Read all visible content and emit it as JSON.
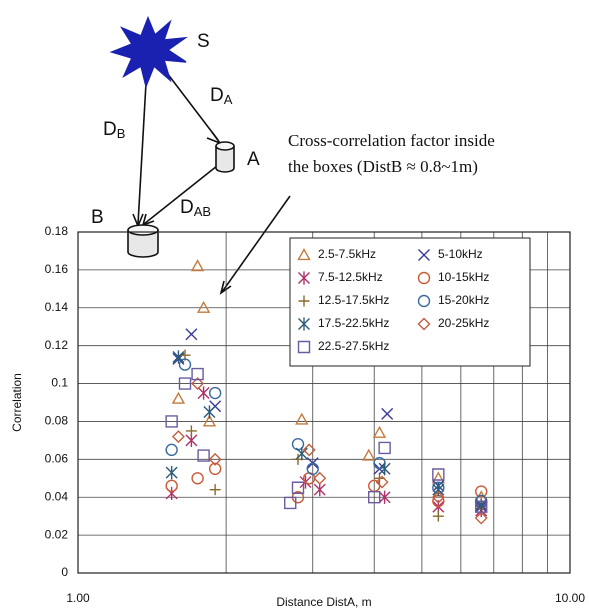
{
  "chart_data": {
    "type": "scatter",
    "xlabel": "Distance DistA, m",
    "ylabel": "Correlation",
    "xscale": "log",
    "grid": true,
    "legend": "upper right",
    "xlim": [
      1,
      10
    ],
    "xticks": [
      {
        "value": 1,
        "label": "1.00"
      },
      {
        "value": 10,
        "label": "10.00"
      }
    ],
    "ylim": [
      0,
      0.18
    ],
    "yticks": [
      0,
      0.02,
      0.04,
      0.06,
      0.08,
      0.1,
      0.12,
      0.14,
      0.16,
      0.18
    ],
    "annotation": [
      "Cross-correlation factor inside",
      "the boxes (DistB ≈ 0.8~1m)"
    ],
    "series": [
      {
        "name": "2.5-7.5kHz",
        "marker": "triangle",
        "color": "#c47a3c",
        "x": [
          1.75,
          1.8,
          1.6,
          1.85,
          2.85,
          4.1,
          3.9,
          5.4,
          6.6
        ],
        "values": [
          0.162,
          0.14,
          0.092,
          0.08,
          0.081,
          0.074,
          0.062,
          0.05,
          0.04
        ]
      },
      {
        "name": "5-10kHz",
        "marker": "x",
        "color": "#3a3a9a",
        "x": [
          1.7,
          1.6,
          1.9,
          3.0,
          4.25,
          4.1,
          5.4,
          6.6
        ],
        "values": [
          0.126,
          0.113,
          0.088,
          0.058,
          0.084,
          0.055,
          0.046,
          0.035
        ]
      },
      {
        "name": "7.5-12.5kHz",
        "marker": "star",
        "color": "#b0306a",
        "x": [
          1.55,
          1.7,
          1.8,
          2.9,
          3.1,
          4.2,
          5.4,
          6.6
        ],
        "values": [
          0.042,
          0.07,
          0.095,
          0.048,
          0.044,
          0.04,
          0.035,
          0.033
        ]
      },
      {
        "name": "10-15kHz",
        "marker": "circle",
        "color": "#cc5a36",
        "x": [
          1.55,
          1.75,
          1.9,
          2.8,
          2.95,
          4.0,
          5.4,
          6.6
        ],
        "values": [
          0.046,
          0.05,
          0.055,
          0.04,
          0.05,
          0.046,
          0.038,
          0.043
        ]
      },
      {
        "name": "12.5-17.5kHz",
        "marker": "plus",
        "color": "#8a6a2a",
        "x": [
          1.65,
          1.9,
          1.7,
          2.8,
          4.1,
          5.4,
          6.6
        ],
        "values": [
          0.115,
          0.044,
          0.075,
          0.06,
          0.05,
          0.03,
          0.034
        ]
      },
      {
        "name": "15-20kHz",
        "marker": "circle",
        "color": "#3a6a9e",
        "x": [
          1.65,
          1.9,
          1.55,
          2.8,
          3.0,
          4.1,
          5.4,
          6.6
        ],
        "values": [
          0.11,
          0.095,
          0.065,
          0.068,
          0.055,
          0.058,
          0.045,
          0.038
        ]
      },
      {
        "name": "17.5-22.5kHz",
        "marker": "star",
        "color": "#2a5a7a",
        "x": [
          1.6,
          1.55,
          1.85,
          2.85,
          4.2,
          5.4,
          6.6
        ],
        "values": [
          0.114,
          0.053,
          0.085,
          0.063,
          0.055,
          0.044,
          0.036
        ]
      },
      {
        "name": "20-25kHz",
        "marker": "diamond",
        "color": "#c0603e",
        "x": [
          1.75,
          1.9,
          1.6,
          2.95,
          3.1,
          4.15,
          5.4,
          6.6
        ],
        "values": [
          0.1,
          0.06,
          0.072,
          0.065,
          0.05,
          0.048,
          0.04,
          0.029
        ]
      },
      {
        "name": "22.5-27.5kHz",
        "marker": "square",
        "color": "#6a5aa0",
        "x": [
          1.55,
          1.65,
          1.75,
          1.8,
          2.8,
          2.7,
          4.0,
          4.2,
          5.4,
          6.6
        ],
        "values": [
          0.08,
          0.1,
          0.105,
          0.062,
          0.045,
          0.037,
          0.04,
          0.066,
          0.052,
          0.035
        ]
      }
    ]
  },
  "diagram": {
    "source": "S",
    "a": "A",
    "b": "B",
    "da": {
      "base": "D",
      "sub": "A"
    },
    "db": {
      "base": "D",
      "sub": "B"
    },
    "dab": {
      "base": "D",
      "sub": "AB"
    }
  }
}
